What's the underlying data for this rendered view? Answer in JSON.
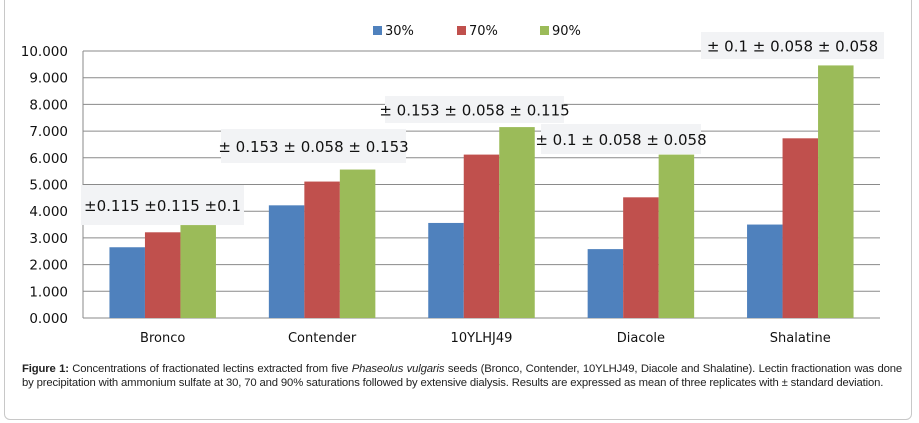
{
  "chart_data": {
    "type": "bar",
    "title": "",
    "xlabel": "",
    "ylabel": "",
    "ylim": [
      0,
      10
    ],
    "yticks": [
      "0.000",
      "1.000",
      "2.000",
      "3.000",
      "4.000",
      "5.000",
      "6.000",
      "7.000",
      "8.000",
      "9.000",
      "10.000"
    ],
    "grid": true,
    "legend_position": "top-center",
    "categories": [
      "Bronco",
      "Contender",
      "10YLHJ49",
      "Diacole",
      "Shalatine"
    ],
    "series": [
      {
        "name": "30%",
        "color": "#4f81bd",
        "values": [
          2.65,
          4.22,
          3.56,
          2.58,
          3.5
        ]
      },
      {
        "name": "70%",
        "color": "#c0504d",
        "values": [
          3.21,
          5.11,
          6.12,
          4.52,
          6.73
        ]
      },
      {
        "name": "90%",
        "color": "#9bbb59",
        "values": [
          3.48,
          5.56,
          7.15,
          6.12,
          9.46
        ]
      }
    ],
    "annotations": [
      "±0.115  ±0.115 ±0.1",
      "± 0.153  ± 0.058  ± 0.153",
      "± 0.153 ± 0.058 ± 0.115",
      "± 0.1   ± 0.058  ± 0.058",
      "± 0.1   ± 0.058  ± 0.058"
    ]
  },
  "caption": {
    "label": "Figure 1:",
    "text_before": " Concentrations of fractionated lectins extracted from five ",
    "species": "Phaseolus vulgaris",
    "text_after": " seeds (Bronco, Contender, 10YLHJ49, Diacole and Shalatine). Lectin fractionation was done by precipitation with ammonium sulfate at 30, 70 and 90% saturations followed by extensive dialysis. Results are expressed as mean of three replicates with ± standard deviation."
  }
}
